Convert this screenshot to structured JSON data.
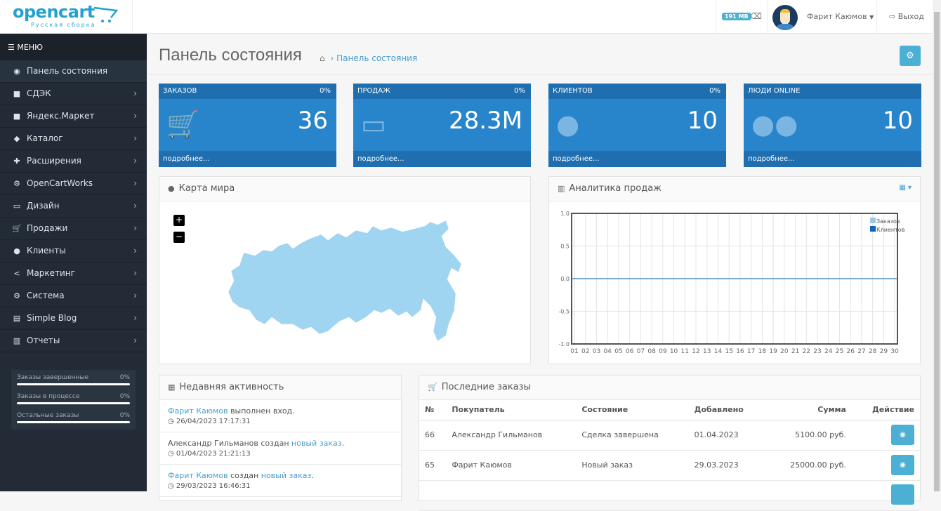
{
  "header": {
    "logo": "opencart",
    "logo_sub": "Русская сборка",
    "memory": "191 MB",
    "user": "Фарит Каюмов",
    "logout": "Выход"
  },
  "sidebar": {
    "menu_label": "МЕНЮ",
    "items": [
      {
        "label": "Панель состояния",
        "icon": "dashboard-icon",
        "glyph": "◉"
      },
      {
        "label": "СДЭК",
        "icon": "truck-icon",
        "glyph": "■"
      },
      {
        "label": "Яндекс.Маркет",
        "icon": "truck-icon",
        "glyph": "■"
      },
      {
        "label": "Каталог",
        "icon": "tags-icon",
        "glyph": "◆"
      },
      {
        "label": "Расширения",
        "icon": "puzzle-icon",
        "glyph": "✚"
      },
      {
        "label": "OpenCartWorks",
        "icon": "cogs-icon",
        "glyph": "⚙"
      },
      {
        "label": "Дизайн",
        "icon": "monitor-icon",
        "glyph": "▭"
      },
      {
        "label": "Продажи",
        "icon": "cart-icon",
        "glyph": "🛒"
      },
      {
        "label": "Клиенты",
        "icon": "user-icon",
        "glyph": "●"
      },
      {
        "label": "Маркетинг",
        "icon": "share-icon",
        "glyph": "<"
      },
      {
        "label": "Система",
        "icon": "cog-icon",
        "glyph": "⚙"
      },
      {
        "label": "Simple Blog",
        "icon": "file-icon",
        "glyph": "▤"
      },
      {
        "label": "Отчеты",
        "icon": "bar-chart-icon",
        "glyph": "▥"
      }
    ],
    "stats": [
      {
        "label": "Заказы завершенные",
        "value": "0%",
        "progress": 0
      },
      {
        "label": "Заказы в процессе",
        "value": "0%",
        "progress": 0
      },
      {
        "label": "Остальные заказы",
        "value": "0%",
        "progress": 0
      }
    ]
  },
  "page": {
    "title": "Панель состояния",
    "breadcrumb": "Панель состояния"
  },
  "tiles": [
    {
      "label": "ЗАКАЗОВ",
      "percent": "0%",
      "value": "36",
      "more": "подробнее...",
      "icon": "cart-icon"
    },
    {
      "label": "ПРОДАЖ",
      "percent": "0%",
      "value": "28.3M",
      "more": "подробнее...",
      "icon": "credit-card-icon"
    },
    {
      "label": "КЛИЕНТОВ",
      "percent": "0%",
      "value": "10",
      "more": "подробнее...",
      "icon": "user-icon"
    },
    {
      "label": "ЛЮДИ ONLINE",
      "percent": "",
      "value": "10",
      "more": "подробнее...",
      "icon": "users-icon"
    }
  ],
  "map": {
    "title": "Карта мира",
    "zoom_in": "+",
    "zoom_out": "−",
    "fill": "#9fd5f0"
  },
  "chart_data": {
    "type": "line",
    "title": "Аналитика продаж",
    "x": [
      "01",
      "02",
      "03",
      "04",
      "05",
      "06",
      "07",
      "08",
      "09",
      "10",
      "11",
      "12",
      "13",
      "14",
      "15",
      "16",
      "17",
      "18",
      "19",
      "20",
      "21",
      "22",
      "23",
      "24",
      "25",
      "26",
      "27",
      "28",
      "29",
      "30"
    ],
    "yticks": [
      "1.0",
      "0.5",
      "0.0",
      "-0.5",
      "-1.0"
    ],
    "ylim": [
      -1,
      1
    ],
    "grid": true,
    "legend": "top-right",
    "series": [
      {
        "name": "Заказов",
        "color": "#9ecae1",
        "values": [
          0,
          0,
          0,
          0,
          0,
          0,
          0,
          0,
          0,
          0,
          0,
          0,
          0,
          0,
          0,
          0,
          0,
          0,
          0,
          0,
          0,
          0,
          0,
          0,
          0,
          0,
          0,
          0,
          0,
          0
        ]
      },
      {
        "name": "Клиентов",
        "color": "#1065c0",
        "values": [
          0,
          0,
          0,
          0,
          0,
          0,
          0,
          0,
          0,
          0,
          0,
          0,
          0,
          0,
          0,
          0,
          0,
          0,
          0,
          0,
          0,
          0,
          0,
          0,
          0,
          0,
          0,
          0,
          0,
          0
        ]
      }
    ]
  },
  "activity": {
    "title": "Недавняя активность",
    "items": [
      {
        "link1": "Фарит Каюмов",
        "text": " выполнен вход.",
        "link2": "",
        "end": "",
        "time": "26/04/2023 17:17:31"
      },
      {
        "link1": "",
        "text": "Александр Гильманов создан ",
        "link2": "новый заказ",
        "end": ".",
        "time": "01/04/2023 21:21:13"
      },
      {
        "link1": "Фарит Каюмов",
        "text": " создан ",
        "link2": "новый заказ",
        "end": ".",
        "time": "29/03/2023 16:46:31"
      }
    ]
  },
  "orders": {
    "title": "Последние заказы",
    "columns": [
      "№",
      "Покупатель",
      "Состояние",
      "Добавлено",
      "Сумма",
      "Действие"
    ],
    "rows": [
      [
        "66",
        "Александр Гильманов",
        "Сделка завершена",
        "01.04.2023",
        "5100.00 руб."
      ],
      [
        "65",
        "Фарит Каюмов",
        "Новый заказ",
        "29.03.2023",
        "25000.00 руб."
      ]
    ]
  }
}
